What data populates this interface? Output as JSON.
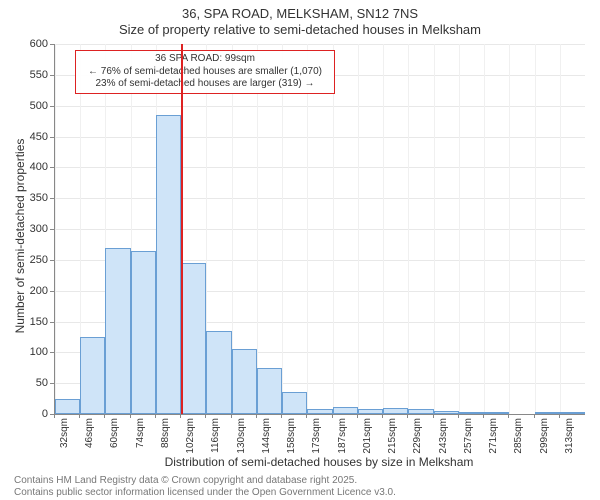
{
  "title_line1": "36, SPA ROAD, MELKSHAM, SN12 7NS",
  "title_line2": "Size of property relative to semi-detached houses in Melksham",
  "chart": {
    "type": "histogram",
    "ylim": [
      0,
      600
    ],
    "ytick_step": 50,
    "ylabel": "Number of semi-detached properties",
    "xlabel": "Distribution of semi-detached houses by size in Melksham",
    "xticks": [
      "32sqm",
      "46sqm",
      "60sqm",
      "74sqm",
      "88sqm",
      "102sqm",
      "116sqm",
      "130sqm",
      "144sqm",
      "158sqm",
      "173sqm",
      "187sqm",
      "201sqm",
      "215sqm",
      "229sqm",
      "243sqm",
      "257sqm",
      "271sqm",
      "285sqm",
      "299sqm",
      "313sqm"
    ],
    "values": [
      25,
      125,
      270,
      265,
      485,
      245,
      135,
      105,
      75,
      35,
      8,
      12,
      8,
      10,
      8,
      5,
      4,
      3,
      0,
      3,
      2
    ],
    "bar_fill": "#cfe4f8",
    "bar_stroke": "#6a9fd4",
    "grid_color": "#e8e8e8",
    "background_color": "#ffffff",
    "axis_color": "#888888",
    "marker_bin_index": 5,
    "marker_color": "#d22",
    "annotation": {
      "line1": "36 SPA ROAD: 99sqm",
      "line2": "← 76% of semi-detached houses are smaller (1,070)",
      "line3": "23% of semi-detached houses are larger (319) →"
    },
    "title_fontsize": 13,
    "label_fontsize": 12,
    "tick_fontsize": 11
  },
  "footer_line1": "Contains HM Land Registry data © Crown copyright and database right 2025.",
  "footer_line2": "Contains public sector information licensed under the Open Government Licence v3.0."
}
